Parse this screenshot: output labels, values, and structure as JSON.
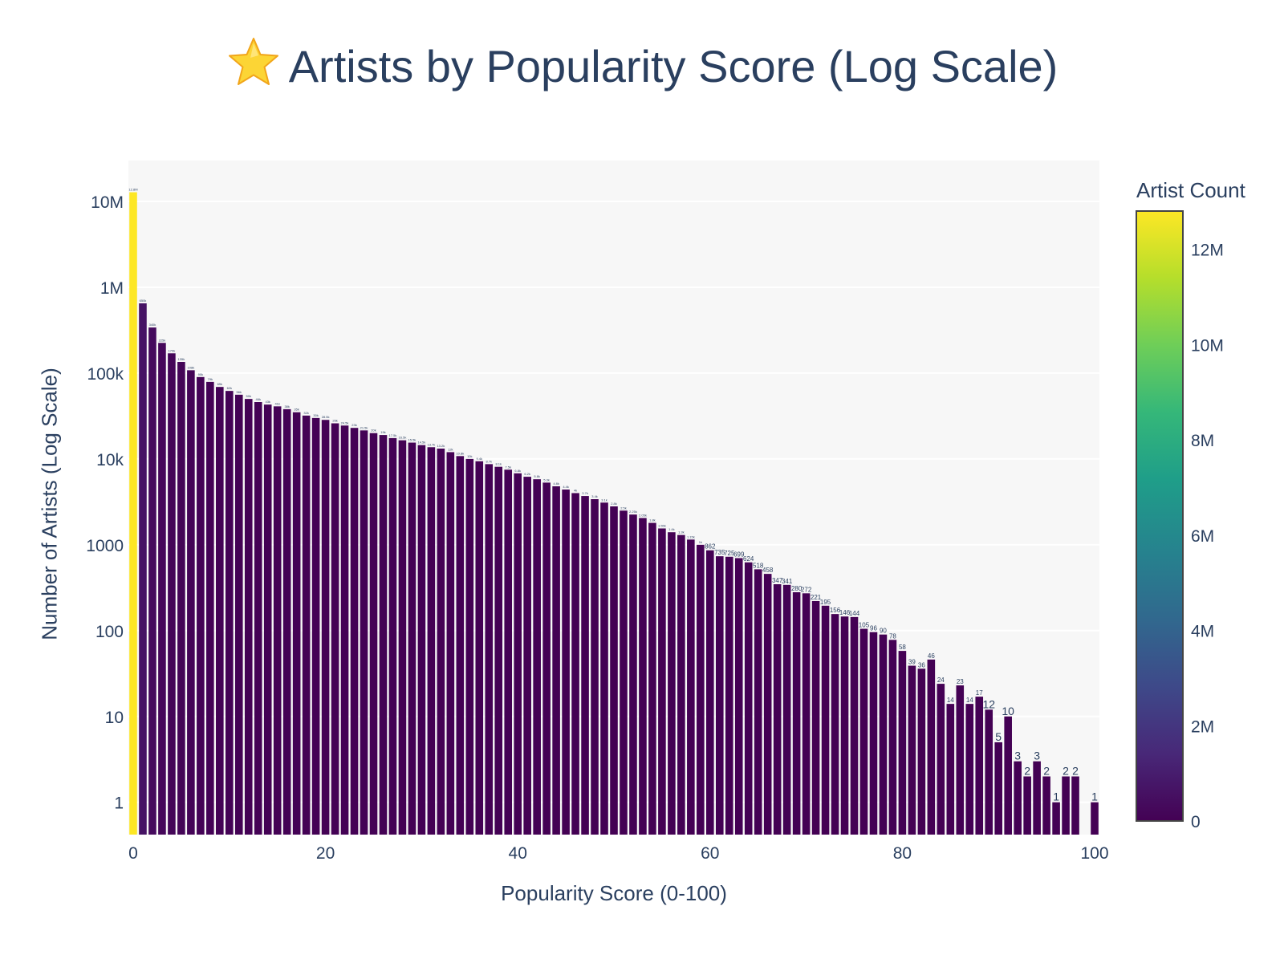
{
  "chart_data": {
    "type": "bar",
    "title_icon": "star-emoji-icon",
    "title": "Artists by Popularity Score (Log Scale)",
    "xlabel": "Popularity Score (0-100)",
    "ylabel": "Number of Artists (Log Scale)",
    "y_scale": "log",
    "xlim": [
      -0.5,
      100.5
    ],
    "ylim": [
      0.42,
      30000000
    ],
    "x_ticks": [
      0,
      20,
      40,
      60,
      80,
      100
    ],
    "x_tick_labels": [
      "0",
      "20",
      "40",
      "60",
      "80",
      "100"
    ],
    "y_ticks": [
      1,
      10,
      100,
      1000,
      10000,
      100000,
      1000000,
      10000000
    ],
    "y_tick_labels": [
      "1",
      "10",
      "100",
      "1000",
      "10k",
      "100k",
      "1M",
      "10M"
    ],
    "grid": true,
    "colorbar": {
      "title": "Artist Count",
      "colorscale": "Viridis",
      "range": [
        0,
        12800000
      ],
      "ticks": [
        0,
        2000000,
        4000000,
        6000000,
        8000000,
        10000000,
        12000000
      ],
      "tick_labels": [
        "0",
        "2M",
        "4M",
        "6M",
        "8M",
        "10M",
        "12M"
      ]
    },
    "x": [
      0,
      1,
      2,
      3,
      4,
      5,
      6,
      7,
      8,
      9,
      10,
      11,
      12,
      13,
      14,
      15,
      16,
      17,
      18,
      19,
      20,
      21,
      22,
      23,
      24,
      25,
      26,
      27,
      28,
      29,
      30,
      31,
      32,
      33,
      34,
      35,
      36,
      37,
      38,
      39,
      40,
      41,
      42,
      43,
      44,
      45,
      46,
      47,
      48,
      49,
      50,
      51,
      52,
      53,
      54,
      55,
      56,
      57,
      58,
      59,
      60,
      61,
      62,
      63,
      64,
      65,
      66,
      67,
      68,
      69,
      70,
      71,
      72,
      73,
      74,
      75,
      76,
      77,
      78,
      79,
      80,
      81,
      82,
      83,
      84,
      85,
      86,
      87,
      88,
      89,
      90,
      91,
      92,
      93,
      94,
      95,
      96,
      97,
      98,
      99,
      100
    ],
    "values": [
      12800000,
      650000,
      340000,
      225000,
      170000,
      135000,
      108000,
      90000,
      79000,
      69000,
      62000,
      56000,
      50000,
      46000,
      43000,
      41000,
      38000,
      35000,
      32000,
      30000,
      28500,
      26000,
      24500,
      23000,
      21500,
      20000,
      19000,
      17500,
      16500,
      15500,
      14500,
      13700,
      13200,
      12000,
      10800,
      10000,
      9400,
      8700,
      8100,
      7500,
      6800,
      6200,
      5800,
      5300,
      4800,
      4400,
      4000,
      3700,
      3400,
      3100,
      2800,
      2500,
      2250,
      2050,
      1800,
      1550,
      1400,
      1300,
      1150,
      1000,
      862,
      735,
      725,
      699,
      624,
      518,
      458,
      347,
      341,
      280,
      272,
      221,
      195,
      156,
      146,
      144,
      105,
      96,
      90,
      78,
      58,
      39,
      36,
      46,
      24,
      14,
      23,
      14,
      17,
      12,
      5,
      10,
      3,
      2,
      3,
      2,
      1,
      2,
      2,
      0,
      1
    ],
    "data_labels": [
      "12.8M",
      "650k",
      "340k",
      "225k",
      "170k",
      "135k",
      "108k",
      "90k",
      "79k",
      "69k",
      "62k",
      "56k",
      "50k",
      "46k",
      "43k",
      "41k",
      "38k",
      "35k",
      "32k",
      "30k",
      "28.5k",
      "26k",
      "24.5k",
      "23k",
      "21.5k",
      "20k",
      "19k",
      "17.5k",
      "16.5k",
      "15.5k",
      "14.5k",
      "13.7k",
      "13.2k",
      "12k",
      "10.8k",
      "10k",
      "9.4k",
      "8.7k",
      "8.1k",
      "7.5k",
      "6.8k",
      "6.2k",
      "5.8k",
      "5.3k",
      "4.8k",
      "4.4k",
      "4k",
      "3.7k",
      "3.4k",
      "3.1k",
      "2.8k",
      "2.5k",
      "2.25k",
      "2.05k",
      "1.8k",
      "1.55k",
      "1.4k",
      "1.3k",
      "1.15k",
      "1k",
      "862",
      "735",
      "725",
      "699",
      "624",
      "518",
      "458",
      "347",
      "341",
      "280",
      "272",
      "221",
      "195",
      "156",
      "146",
      "144",
      "105",
      "96",
      "90",
      "78",
      "58",
      "39",
      "36",
      "46",
      "24",
      "14",
      "23",
      "14",
      "17",
      "12",
      "5",
      "10",
      "3",
      "2",
      "3",
      "2",
      "1",
      "2",
      "2",
      "",
      "1"
    ]
  }
}
